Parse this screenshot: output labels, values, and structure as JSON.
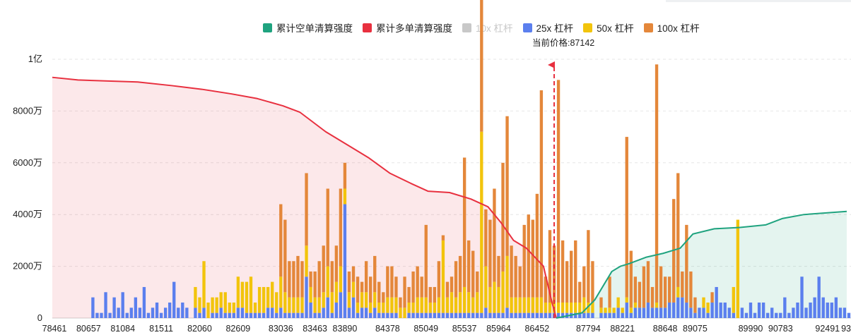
{
  "chart_data": {
    "type": "bar",
    "legend": [
      {
        "key": "short",
        "label": "累计空单清算强度",
        "color": "#1fa37f",
        "active": true
      },
      {
        "key": "long",
        "label": "累计多单清算强度",
        "color": "#e8303f",
        "active": true
      },
      {
        "key": "lev10",
        "label": "10x 杠杆",
        "color": "#c8c8c8",
        "active": false
      },
      {
        "key": "lev25",
        "label": "25x 杠杆",
        "color": "#5b7fee",
        "active": true
      },
      {
        "key": "lev50",
        "label": "50x 杠杆",
        "color": "#f2c40c",
        "active": true
      },
      {
        "key": "lev100",
        "label": "100x 杠杆",
        "color": "#e4873a",
        "active": true
      }
    ],
    "current_price_label": "当前价格:87142",
    "current_price": 87142,
    "y_ticks": [
      "0",
      "2000万",
      "4000万",
      "6000万",
      "8000万",
      "1亿"
    ],
    "y_tick_values": [
      0,
      20000000,
      40000000,
      60000000,
      80000000,
      100000000
    ],
    "ylim": [
      0,
      100000000
    ],
    "x_tick_labels": [
      "78461",
      "80657",
      "81084",
      "81511",
      "82060",
      "82609",
      "83036",
      "83463",
      "83890",
      "84378",
      "85049",
      "85537",
      "85964",
      "86452",
      "87794",
      "88221",
      "88648",
      "89075",
      "89990",
      "90783",
      "92491",
      "93"
    ],
    "x_tick_indices": [
      0,
      8,
      16,
      25,
      34,
      43,
      53,
      61,
      68,
      78,
      87,
      96,
      104,
      113,
      125,
      133,
      143,
      150,
      163,
      170,
      181,
      185
    ],
    "x_range": [
      78461,
      93540
    ],
    "num_bins": 187,
    "current_price_index": 117.5,
    "cum_long_points": [
      [
        0,
        93000000
      ],
      [
        6,
        92000000
      ],
      [
        20,
        91200000
      ],
      [
        28,
        89800000
      ],
      [
        35,
        88400000
      ],
      [
        42,
        86600000
      ],
      [
        48,
        84800000
      ],
      [
        54,
        82000000
      ],
      [
        58,
        79500000
      ],
      [
        64,
        72000000
      ],
      [
        70,
        66000000
      ],
      [
        74,
        62000000
      ],
      [
        79,
        56000000
      ],
      [
        84,
        52000000
      ],
      [
        88,
        49000000
      ],
      [
        93,
        48500000
      ],
      [
        98,
        46000000
      ],
      [
        102,
        43000000
      ],
      [
        105,
        37000000
      ],
      [
        108,
        30000000
      ],
      [
        111,
        27000000
      ],
      [
        115,
        20000000
      ],
      [
        117,
        6000000
      ],
      [
        118,
        0
      ]
    ],
    "cum_short_points": [
      [
        118,
        0
      ],
      [
        124,
        2000000
      ],
      [
        127,
        7000000
      ],
      [
        131,
        18000000
      ],
      [
        133,
        20000000
      ],
      [
        135,
        21000000
      ],
      [
        139,
        23500000
      ],
      [
        143,
        25000000
      ],
      [
        147,
        27000000
      ],
      [
        150,
        32500000
      ],
      [
        155,
        34500000
      ],
      [
        161,
        35000000
      ],
      [
        167,
        36000000
      ],
      [
        171,
        38500000
      ],
      [
        176,
        40000000
      ],
      [
        186,
        41200000
      ]
    ],
    "bar_spec": [
      [
        9,
        4,
        0,
        0
      ],
      [
        10,
        1,
        0,
        0
      ],
      [
        11,
        1,
        0,
        0
      ],
      [
        12,
        5,
        0,
        0
      ],
      [
        13,
        1,
        0,
        0
      ],
      [
        14,
        4,
        0,
        0
      ],
      [
        15,
        2,
        0,
        0
      ],
      [
        16,
        5,
        0,
        0
      ],
      [
        17,
        1,
        0,
        0
      ],
      [
        18,
        2,
        0,
        0
      ],
      [
        19,
        4,
        0,
        0
      ],
      [
        20,
        2,
        0,
        0
      ],
      [
        21,
        6,
        0,
        0
      ],
      [
        22,
        1,
        0,
        0
      ],
      [
        23,
        2,
        0,
        0
      ],
      [
        24,
        3,
        0,
        0
      ],
      [
        25,
        1,
        0,
        0
      ],
      [
        26,
        2,
        0,
        0
      ],
      [
        27,
        3,
        0,
        0
      ],
      [
        28,
        7,
        0,
        0
      ],
      [
        29,
        2,
        0,
        0
      ],
      [
        30,
        3,
        0,
        0
      ],
      [
        31,
        2,
        0,
        0
      ],
      [
        33,
        2,
        4,
        0
      ],
      [
        34,
        1,
        3,
        0
      ],
      [
        35,
        2,
        9,
        0
      ],
      [
        36,
        0,
        3,
        0
      ],
      [
        37,
        1,
        3,
        0
      ],
      [
        38,
        1,
        3,
        0
      ],
      [
        39,
        2,
        3,
        0
      ],
      [
        40,
        1,
        4,
        0
      ],
      [
        41,
        1,
        2,
        0
      ],
      [
        42,
        1,
        2,
        0
      ],
      [
        43,
        2,
        6,
        0
      ],
      [
        44,
        2,
        5,
        0
      ],
      [
        45,
        1,
        6,
        0
      ],
      [
        46,
        1,
        7,
        0
      ],
      [
        47,
        1,
        2,
        0
      ],
      [
        48,
        1,
        5,
        0
      ],
      [
        49,
        1,
        5,
        0
      ],
      [
        50,
        2,
        4,
        0
      ],
      [
        51,
        2,
        5,
        0
      ],
      [
        52,
        1,
        4,
        0
      ],
      [
        53,
        2,
        6,
        14
      ],
      [
        54,
        1,
        4,
        14
      ],
      [
        55,
        1,
        3,
        7
      ],
      [
        56,
        1,
        3,
        7
      ],
      [
        57,
        1,
        3,
        8
      ],
      [
        58,
        1,
        3,
        7
      ],
      [
        59,
        8,
        6,
        14
      ],
      [
        60,
        3,
        3,
        3
      ],
      [
        61,
        1,
        3,
        5
      ],
      [
        62,
        1,
        3,
        7
      ],
      [
        63,
        2,
        3,
        9
      ],
      [
        64,
        4,
        6,
        15
      ],
      [
        65,
        1,
        4,
        6
      ],
      [
        66,
        3,
        4,
        7
      ],
      [
        67,
        5,
        5,
        15
      ],
      [
        68,
        22,
        3,
        5
      ],
      [
        69,
        2,
        3,
        4
      ],
      [
        70,
        4,
        3,
        3
      ],
      [
        71,
        1,
        2,
        5
      ],
      [
        72,
        2,
        3,
        2
      ],
      [
        73,
        2,
        3,
        6
      ],
      [
        74,
        1,
        2,
        5
      ],
      [
        75,
        2,
        3,
        7
      ],
      [
        76,
        1,
        2,
        4
      ],
      [
        77,
        1,
        2,
        2
      ],
      [
        78,
        1,
        3,
        6
      ],
      [
        79,
        1,
        3,
        6
      ],
      [
        80,
        1,
        3,
        4
      ],
      [
        81,
        0,
        2,
        2
      ],
      [
        82,
        0,
        2,
        6
      ],
      [
        83,
        1,
        2,
        3
      ],
      [
        84,
        1,
        2,
        6
      ],
      [
        85,
        1,
        3,
        6
      ],
      [
        86,
        1,
        3,
        4
      ],
      [
        87,
        1,
        3,
        14
      ],
      [
        88,
        1,
        2,
        3
      ],
      [
        89,
        1,
        2,
        3
      ],
      [
        90,
        1,
        3,
        7
      ],
      [
        91,
        1,
        14,
        1
      ],
      [
        92,
        1,
        3,
        3
      ],
      [
        93,
        1,
        4,
        3
      ],
      [
        94,
        1,
        3,
        7
      ],
      [
        95,
        1,
        4,
        7
      ],
      [
        96,
        1,
        5,
        25
      ],
      [
        97,
        1,
        4,
        10
      ],
      [
        98,
        1,
        3,
        9
      ],
      [
        99,
        1,
        4,
        4
      ],
      [
        100,
        1,
        35,
        28
      ],
      [
        101,
        2,
        8,
        11
      ],
      [
        102,
        1,
        5,
        13
      ],
      [
        103,
        1,
        6,
        18
      ],
      [
        104,
        1,
        5,
        6
      ],
      [
        105,
        1,
        8,
        21
      ],
      [
        106,
        2,
        10,
        27
      ],
      [
        107,
        1,
        3,
        10
      ],
      [
        108,
        1,
        3,
        8
      ],
      [
        109,
        1,
        3,
        6
      ],
      [
        110,
        1,
        3,
        14
      ],
      [
        111,
        1,
        3,
        16
      ],
      [
        112,
        1,
        3,
        15
      ],
      [
        113,
        1,
        3,
        20
      ],
      [
        114,
        1,
        3,
        40
      ],
      [
        115,
        1,
        2,
        5
      ],
      [
        116,
        1,
        2,
        14
      ],
      [
        117,
        1,
        2,
        11
      ],
      [
        118,
        1,
        2,
        43
      ],
      [
        119,
        1,
        2,
        12
      ],
      [
        120,
        1,
        2,
        8
      ],
      [
        121,
        1,
        2,
        10
      ],
      [
        122,
        1,
        2,
        12
      ],
      [
        123,
        1,
        2,
        4
      ],
      [
        124,
        1,
        3,
        6
      ],
      [
        125,
        1,
        2,
        14
      ],
      [
        126,
        1,
        2,
        8
      ],
      [
        128,
        1,
        1,
        2
      ],
      [
        129,
        1,
        1,
        0
      ],
      [
        130,
        1,
        1,
        6
      ],
      [
        131,
        1,
        1,
        0
      ],
      [
        132,
        2,
        2,
        0
      ],
      [
        133,
        1,
        1,
        0
      ],
      [
        134,
        3,
        1,
        31
      ],
      [
        135,
        1,
        1,
        11
      ],
      [
        136,
        2,
        1,
        5
      ],
      [
        137,
        2,
        0,
        5
      ],
      [
        138,
        2,
        0,
        8
      ],
      [
        139,
        3,
        0,
        8
      ],
      [
        140,
        2,
        0,
        4
      ],
      [
        141,
        2,
        1,
        46
      ],
      [
        142,
        2,
        0,
        8
      ],
      [
        143,
        2,
        0,
        6
      ],
      [
        144,
        3,
        0,
        5
      ],
      [
        145,
        3,
        0,
        20
      ],
      [
        146,
        4,
        2,
        22
      ],
      [
        147,
        4,
        0,
        5
      ],
      [
        148,
        3,
        0,
        15
      ],
      [
        149,
        2,
        0,
        7
      ],
      [
        150,
        1,
        0,
        3
      ],
      [
        151,
        2,
        0,
        0
      ],
      [
        152,
        2,
        2,
        0
      ],
      [
        153,
        1,
        2,
        0
      ],
      [
        154,
        3,
        0,
        2
      ],
      [
        155,
        6,
        0,
        0
      ],
      [
        156,
        3,
        0,
        0
      ],
      [
        157,
        3,
        0,
        0
      ],
      [
        158,
        2,
        0,
        0
      ],
      [
        159,
        1,
        5,
        0
      ],
      [
        160,
        0,
        19,
        0
      ],
      [
        161,
        2,
        0,
        0
      ],
      [
        162,
        1,
        0,
        0
      ],
      [
        163,
        3,
        0,
        0
      ],
      [
        164,
        1,
        0,
        0
      ],
      [
        165,
        3,
        0,
        0
      ],
      [
        166,
        3,
        0,
        0
      ],
      [
        167,
        1,
        0,
        0
      ],
      [
        168,
        2,
        0,
        0
      ],
      [
        169,
        1,
        0,
        0
      ],
      [
        170,
        1,
        0,
        0
      ],
      [
        171,
        4,
        0,
        0
      ],
      [
        172,
        1,
        0,
        0
      ],
      [
        173,
        2,
        0,
        0
      ],
      [
        174,
        3,
        0,
        0
      ],
      [
        175,
        8,
        0,
        0
      ],
      [
        176,
        2,
        0,
        0
      ],
      [
        177,
        3,
        0,
        0
      ],
      [
        178,
        4,
        0,
        0
      ],
      [
        179,
        8,
        0,
        0
      ],
      [
        180,
        4,
        0,
        0
      ],
      [
        181,
        3,
        0,
        0
      ],
      [
        182,
        3,
        0,
        0
      ],
      [
        183,
        4,
        0,
        0
      ],
      [
        184,
        2,
        0,
        0
      ],
      [
        185,
        2,
        0,
        0
      ],
      [
        186,
        1,
        0,
        0
      ]
    ]
  }
}
